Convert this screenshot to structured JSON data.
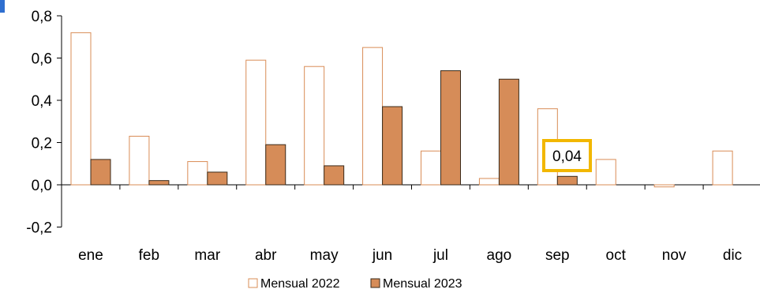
{
  "chart_data": {
    "type": "bar",
    "categories": [
      "ene",
      "feb",
      "mar",
      "abr",
      "may",
      "jun",
      "jul",
      "ago",
      "sep",
      "oct",
      "nov",
      "dic"
    ],
    "series": [
      {
        "name": "Mensual 2022",
        "values": [
          0.72,
          0.23,
          0.11,
          0.59,
          0.56,
          0.65,
          0.16,
          0.03,
          0.36,
          0.12,
          -0.01,
          0.16
        ],
        "color": "#ffffff",
        "stroke": "#d98c56"
      },
      {
        "name": "Mensual 2023",
        "values": [
          0.12,
          0.02,
          0.06,
          0.19,
          0.09,
          0.37,
          0.54,
          0.5,
          0.04,
          null,
          null,
          null
        ],
        "color": "#d68c58",
        "stroke": "#3a2a1a"
      }
    ],
    "ylim": [
      -0.2,
      0.8
    ],
    "yticks": [
      "-0,2",
      "0,0",
      "0,2",
      "0,4",
      "0,6",
      "0,8"
    ],
    "ytick_values": [
      -0.2,
      0.0,
      0.2,
      0.4,
      0.6,
      0.8
    ],
    "xlabel": "",
    "ylabel": "",
    "title": "",
    "legend_position": "bottom",
    "grid": false,
    "annotation": {
      "text": "0,04",
      "category": "sep",
      "series": "Mensual 2023",
      "border_color": "#f2b700"
    }
  }
}
